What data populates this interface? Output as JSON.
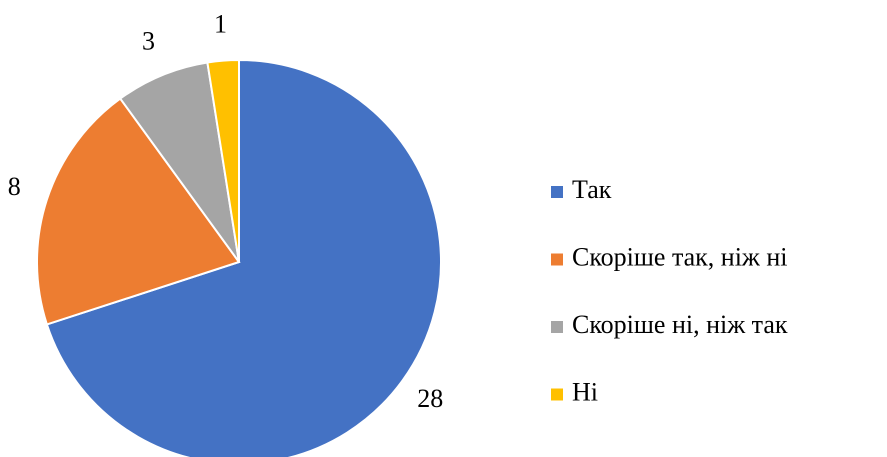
{
  "chart_data": {
    "type": "pie",
    "categories": [
      "Так",
      "Скоріше так, ніж ні",
      "Скоріше ні, ніж так",
      "Ні"
    ],
    "values": [
      28,
      8,
      3,
      1
    ],
    "colors": [
      "#4472c4",
      "#ed7d31",
      "#a5a5a5",
      "#ffc000"
    ],
    "legend": "right"
  }
}
